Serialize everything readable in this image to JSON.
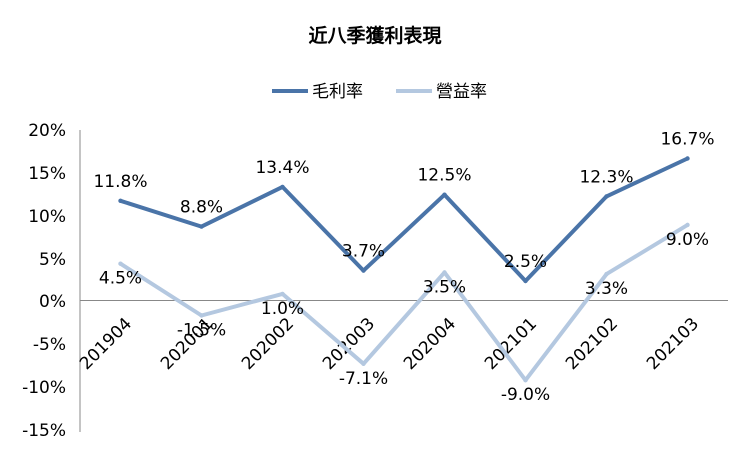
{
  "chart_data": {
    "type": "line",
    "title": "近八季獲利表現",
    "categories": [
      "201904",
      "202001",
      "202002",
      "202003",
      "202004",
      "202101",
      "202102",
      "202103"
    ],
    "series": [
      {
        "name": "毛利率",
        "color": "#4A74A8",
        "values": [
          11.8,
          8.8,
          13.4,
          3.7,
          12.5,
          2.5,
          12.3,
          16.7
        ],
        "labels": [
          "11.8%",
          "8.8%",
          "13.4%",
          "3.7%",
          "12.5%",
          "2.5%",
          "12.3%",
          "16.7%"
        ]
      },
      {
        "name": "營益率",
        "color": "#B4C8E0",
        "values": [
          4.5,
          -1.5,
          1.0,
          -7.1,
          3.5,
          -9.0,
          3.3,
          9.0
        ],
        "labels": [
          "4.5%",
          "-1.5%",
          "1.0%",
          "-7.1%",
          "3.5%",
          "-9.0%",
          "3.3%",
          "9.0%"
        ]
      }
    ],
    "yticks": [
      "20%",
      "15%",
      "10%",
      "5%",
      "0%",
      "-5%",
      "-10%",
      "-15%"
    ],
    "ylim": [
      -15,
      20
    ],
    "legend_position": "top",
    "grid": false
  }
}
